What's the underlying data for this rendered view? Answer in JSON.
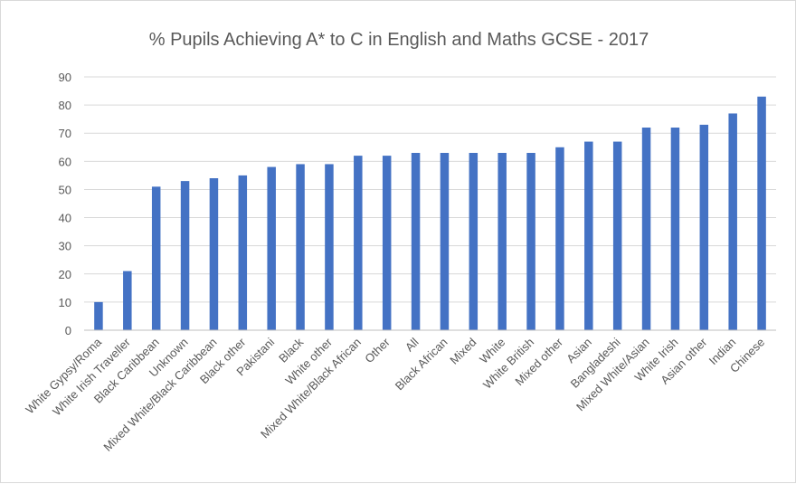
{
  "chart_data": {
    "type": "bar",
    "title": "% Pupils Achieving A* to C in English and Maths GCSE - 2017",
    "xlabel": "",
    "ylabel": "",
    "ylim": [
      0,
      90
    ],
    "yticks": [
      0,
      10,
      20,
      30,
      40,
      50,
      60,
      70,
      80,
      90
    ],
    "grid": true,
    "legend": "none",
    "bar_color": "#4472c4",
    "categories": [
      "White Gypsy/Roma",
      "White Irish Traveller",
      "Black Caribbean",
      "Unknown",
      "Mixed White/Black Caribbean",
      "Black other",
      "Pakistani",
      "Black",
      "White other",
      "Mixed White/Black African",
      "Other",
      "All",
      "Black African",
      "Mixed",
      "White",
      "White British",
      "Mixed other",
      "Asian",
      "Bangladeshi",
      "Mixed White/Asian",
      "White Irish",
      "Asian other",
      "Indian",
      "Chinese"
    ],
    "values": [
      10,
      21,
      51,
      53,
      54,
      55,
      58,
      59,
      59,
      62,
      62,
      63,
      63,
      63,
      63,
      63,
      65,
      67,
      67,
      72,
      72,
      73,
      77,
      83
    ]
  }
}
